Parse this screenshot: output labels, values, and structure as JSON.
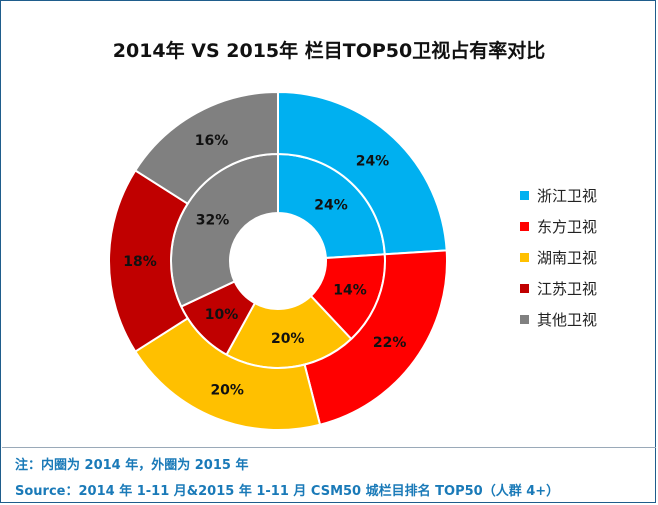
{
  "chart_data": {
    "type": "pie",
    "title": "2014年 VS 2015年 栏目TOP50卫视占有率对比",
    "categories": [
      "浙江卫视",
      "东方卫视",
      "湖南卫视",
      "江苏卫视",
      "其他卫视"
    ],
    "colors": [
      "#00b0f0",
      "#ff0000",
      "#ffc000",
      "#c00000",
      "#808080"
    ],
    "series": [
      {
        "values": [
          24,
          14,
          20,
          10,
          32
        ],
        "labels": [
          "24%",
          "14%",
          "20%",
          "10%",
          "32%"
        ]
      },
      {
        "values": [
          24,
          22,
          20,
          18,
          16
        ],
        "labels": [
          "24%",
          "22%",
          "20%",
          "18%",
          "16%"
        ]
      }
    ],
    "legend_position": "right"
  },
  "footnote": {
    "line1": "注：内圈为 2014 年，外圈为 2015 年",
    "line2": "Source：2014 年 1-11 月&2015 年 1-11 月  CSM50 城栏目排名 TOP50（人群 4+）"
  }
}
